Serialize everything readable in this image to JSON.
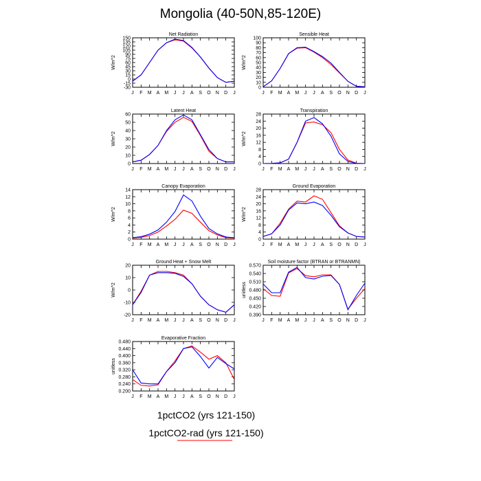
{
  "title": "Mongolia (40-50N,85-120E)",
  "months": [
    "J",
    "F",
    "M",
    "A",
    "M",
    "J",
    "J",
    "A",
    "S",
    "O",
    "N",
    "D",
    "J"
  ],
  "colors": {
    "series1": "#0000ff",
    "series2": "#ff0000"
  },
  "legend": {
    "series1_label": "1pctCO2 (yrs 121-150)",
    "series2_label": "1pctCO2-rad (yrs 121-150)"
  },
  "chart_data": [
    {
      "type": "line",
      "title": "Net Radiation",
      "ylabel": "W/m^2",
      "ylim": [
        -30,
        150
      ],
      "yticks": [
        "-30",
        "-15",
        "0",
        "15",
        "30",
        "45",
        "60",
        "75",
        "90",
        "105",
        "120",
        "135",
        "150"
      ],
      "series": [
        {
          "color": "series1",
          "values": [
            -8,
            15,
            60,
            105,
            132,
            145,
            140,
            115,
            80,
            40,
            5,
            -12,
            -8
          ]
        },
        {
          "color": "series2",
          "values": [
            -8,
            15,
            60,
            105,
            132,
            143,
            138,
            113,
            80,
            40,
            5,
            -12,
            -8
          ]
        }
      ]
    },
    {
      "type": "line",
      "title": "Sensible Heat",
      "ylabel": "W/m^2",
      "ylim": [
        0,
        100
      ],
      "yticks": [
        "0",
        "10",
        "20",
        "30",
        "40",
        "50",
        "60",
        "70",
        "80",
        "90",
        "100"
      ],
      "series": [
        {
          "color": "series1",
          "values": [
            1,
            13,
            38,
            68,
            80,
            81,
            72,
            62,
            49,
            30,
            12,
            2,
            1
          ]
        },
        {
          "color": "series2",
          "values": [
            1,
            13,
            38,
            68,
            79,
            80,
            71,
            60,
            46,
            29,
            12,
            2,
            1
          ]
        }
      ]
    },
    {
      "type": "line",
      "title": "Latent Heat",
      "ylabel": "W/m^2",
      "ylim": [
        0,
        60
      ],
      "yticks": [
        "0",
        "10",
        "20",
        "30",
        "40",
        "50",
        "60"
      ],
      "series": [
        {
          "color": "series1",
          "values": [
            2,
            4,
            11,
            22,
            40,
            53,
            59,
            53,
            35,
            17,
            6,
            2,
            2
          ]
        },
        {
          "color": "series2",
          "values": [
            2,
            4,
            11,
            22,
            39,
            50,
            56,
            51,
            34,
            15,
            6,
            2,
            2
          ]
        }
      ]
    },
    {
      "type": "line",
      "title": "Transpiration",
      "ylabel": "W/m^2",
      "ylim": [
        0,
        28
      ],
      "yticks": [
        "0",
        "4",
        "8",
        "12",
        "16",
        "20",
        "24",
        "28"
      ],
      "series": [
        {
          "color": "series1",
          "values": [
            0,
            0.1,
            0.4,
            2.5,
            12,
            24,
            26,
            22.5,
            15.5,
            5.5,
            1.2,
            0.1,
            0
          ]
        },
        {
          "color": "series2",
          "values": [
            0,
            0.1,
            0.4,
            2.5,
            12,
            23,
            23.5,
            22,
            17.5,
            8,
            2,
            0.2,
            0
          ]
        }
      ]
    },
    {
      "type": "line",
      "title": "Canopy Evaporation",
      "ylabel": "W/m^2",
      "ylim": [
        0,
        14
      ],
      "yticks": [
        "0",
        "2",
        "4",
        "6",
        "8",
        "10",
        "12",
        "14"
      ],
      "series": [
        {
          "color": "series1",
          "values": [
            0.4,
            0.7,
            1.4,
            2.6,
            4.8,
            7.8,
            12.5,
            10.8,
            6.5,
            3,
            1.5,
            0.6,
            0.4
          ]
        },
        {
          "color": "series2",
          "values": [
            0.3,
            0.5,
            1,
            2,
            3.7,
            5.6,
            8.2,
            7.3,
            4.8,
            2.4,
            1.2,
            0.4,
            0.3
          ]
        }
      ]
    },
    {
      "type": "line",
      "title": "Ground Evaporation",
      "ylabel": "W/m^2",
      "ylim": [
        0,
        28
      ],
      "yticks": [
        "0",
        "4",
        "8",
        "12",
        "16",
        "20",
        "24",
        "28"
      ],
      "series": [
        {
          "color": "series1",
          "values": [
            1.5,
            3,
            8,
            16.5,
            20.5,
            20,
            21,
            19,
            13.5,
            7,
            3.5,
            1.5,
            1.2
          ]
        },
        {
          "color": "series2",
          "values": [
            1.5,
            3,
            9,
            17,
            21.5,
            21,
            24.5,
            22.5,
            15,
            7.5,
            3.5,
            1.5,
            1.2
          ]
        }
      ]
    },
    {
      "type": "line",
      "title": "Ground Heat + Snow Melt",
      "ylabel": "W/m^2",
      "ylim": [
        -20,
        20
      ],
      "yticks": [
        "-20",
        "-10",
        "0",
        "10",
        "20"
      ],
      "series": [
        {
          "color": "series1",
          "values": [
            -12,
            -2,
            12,
            14,
            14,
            13.5,
            11,
            5,
            -5,
            -12,
            -16,
            -18,
            -12
          ]
        },
        {
          "color": "series2",
          "values": [
            -12,
            -1,
            12,
            15,
            15,
            14,
            12,
            5,
            -5,
            -12,
            -16,
            -18,
            -12
          ]
        }
      ]
    },
    {
      "type": "line",
      "title": "Soil moisture factor (BTRAN or BTRANMN)",
      "ylabel": "unitless",
      "ylim": [
        0.39,
        0.57
      ],
      "yticks": [
        "0.390",
        "0.420",
        "0.450",
        "0.480",
        "0.510",
        "0.540",
        "0.570"
      ],
      "series": [
        {
          "color": "series1",
          "values": [
            0.502,
            0.47,
            0.47,
            0.545,
            0.562,
            0.525,
            0.52,
            0.53,
            0.533,
            0.5,
            0.408,
            0.46,
            0.505
          ]
        },
        {
          "color": "series2",
          "values": [
            0.485,
            0.46,
            0.457,
            0.542,
            0.558,
            0.532,
            0.528,
            0.535,
            0.535,
            0.5,
            0.41,
            0.45,
            0.485
          ]
        }
      ]
    },
    {
      "type": "line",
      "title": "Evaporative Fraction",
      "ylabel": "unitless",
      "ylim": [
        0.2,
        0.48
      ],
      "yticks": [
        "0.200",
        "0.240",
        "0.280",
        "0.320",
        "0.360",
        "0.400",
        "0.440",
        "0.480"
      ],
      "series": [
        {
          "color": "series1",
          "values": [
            0.32,
            0.245,
            0.24,
            0.24,
            0.31,
            0.36,
            0.44,
            0.45,
            0.395,
            0.33,
            0.39,
            0.355,
            0.325
          ]
        },
        {
          "color": "series2",
          "values": [
            0.265,
            0.232,
            0.228,
            0.235,
            0.31,
            0.37,
            0.44,
            0.455,
            0.42,
            0.38,
            0.4,
            0.36,
            0.265
          ]
        }
      ]
    }
  ]
}
